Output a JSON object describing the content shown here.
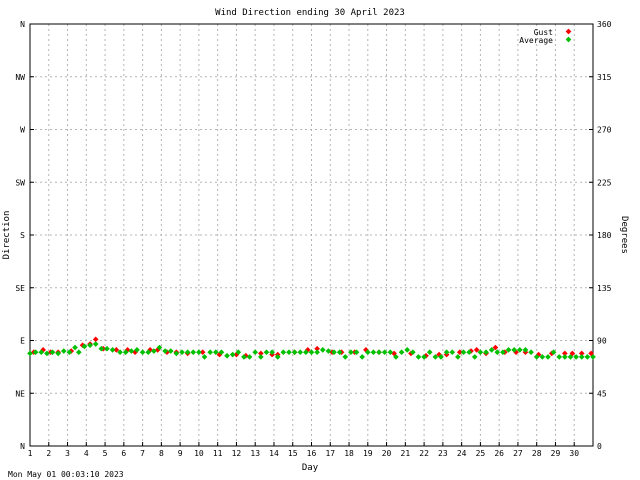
{
  "chart_data": {
    "type": "scatter",
    "title": "Wind Direction ending 30 April 2023",
    "xlabel": "Day",
    "ylabel_left": "Direction",
    "ylabel_right": "Degrees",
    "x_ticks": [
      "1",
      "2",
      "3",
      "4",
      "5",
      "6",
      "7",
      "8",
      "9",
      "10",
      "11",
      "12",
      "13",
      "14",
      "15",
      "16",
      "17",
      "18",
      "19",
      "20",
      "21",
      "22",
      "23",
      "24",
      "25",
      "26",
      "27",
      "28",
      "29",
      "30"
    ],
    "xlim": [
      1,
      31
    ],
    "ylim": [
      0,
      360
    ],
    "y_ticks_left": [
      {
        "value": 0,
        "label": "N"
      },
      {
        "value": 45,
        "label": "NE"
      },
      {
        "value": 90,
        "label": "E"
      },
      {
        "value": 135,
        "label": "SE"
      },
      {
        "value": 180,
        "label": "S"
      },
      {
        "value": 225,
        "label": "SW"
      },
      {
        "value": 270,
        "label": "W"
      },
      {
        "value": 315,
        "label": "NW"
      },
      {
        "value": 360,
        "label": "N"
      }
    ],
    "y_ticks_right": [
      {
        "value": 0,
        "label": "0"
      },
      {
        "value": 45,
        "label": "45"
      },
      {
        "value": 90,
        "label": "90"
      },
      {
        "value": 135,
        "label": "135"
      },
      {
        "value": 180,
        "label": "180"
      },
      {
        "value": 225,
        "label": "225"
      },
      {
        "value": 270,
        "label": "270"
      },
      {
        "value": 315,
        "label": "315"
      },
      {
        "value": 360,
        "label": "360"
      }
    ],
    "grid": true,
    "legend_position": "top-right",
    "series": [
      {
        "name": "Gust",
        "color": "#ff0000",
        "points": [
          [
            1.2,
            80
          ],
          [
            1.7,
            82
          ],
          [
            2.1,
            80
          ],
          [
            2.5,
            80
          ],
          [
            3.2,
            81
          ],
          [
            3.8,
            86
          ],
          [
            4.2,
            87
          ],
          [
            4.5,
            91
          ],
          [
            4.9,
            83
          ],
          [
            5.6,
            82
          ],
          [
            6.2,
            82
          ],
          [
            6.6,
            80
          ],
          [
            7.4,
            82
          ],
          [
            7.8,
            82
          ],
          [
            8.3,
            80
          ],
          [
            8.8,
            80
          ],
          [
            9.4,
            79
          ],
          [
            10.2,
            80
          ],
          [
            11.1,
            78
          ],
          [
            12.0,
            78
          ],
          [
            12.5,
            77
          ],
          [
            13.3,
            79
          ],
          [
            13.9,
            78
          ],
          [
            14.2,
            78
          ],
          [
            15.1,
            80
          ],
          [
            15.8,
            82
          ],
          [
            16.3,
            83
          ],
          [
            17.1,
            80
          ],
          [
            17.6,
            80
          ],
          [
            18.3,
            80
          ],
          [
            18.9,
            82
          ],
          [
            19.6,
            80
          ],
          [
            20.4,
            79
          ],
          [
            21.3,
            79
          ],
          [
            22.1,
            77
          ],
          [
            22.8,
            78
          ],
          [
            23.2,
            78
          ],
          [
            23.9,
            80
          ],
          [
            24.5,
            81
          ],
          [
            24.8,
            82
          ],
          [
            25.3,
            79
          ],
          [
            25.8,
            84
          ],
          [
            26.3,
            80
          ],
          [
            26.9,
            80
          ],
          [
            27.4,
            80
          ],
          [
            28.1,
            78
          ],
          [
            28.8,
            79
          ],
          [
            29.5,
            79
          ],
          [
            29.9,
            79
          ],
          [
            30.4,
            79
          ],
          [
            30.9,
            79
          ]
        ]
      },
      {
        "name": "Average",
        "color": "#00c000",
        "points": [
          [
            1.0,
            79
          ],
          [
            1.3,
            80
          ],
          [
            1.6,
            80
          ],
          [
            1.9,
            79
          ],
          [
            2.2,
            80
          ],
          [
            2.5,
            79
          ],
          [
            2.8,
            81
          ],
          [
            3.1,
            80
          ],
          [
            3.4,
            84
          ],
          [
            3.6,
            80
          ],
          [
            3.9,
            85
          ],
          [
            4.2,
            86
          ],
          [
            4.5,
            87
          ],
          [
            4.8,
            83
          ],
          [
            5.1,
            83
          ],
          [
            5.4,
            82
          ],
          [
            5.8,
            80
          ],
          [
            6.1,
            80
          ],
          [
            6.4,
            81
          ],
          [
            6.7,
            82
          ],
          [
            7.0,
            80
          ],
          [
            7.3,
            80
          ],
          [
            7.6,
            81
          ],
          [
            7.9,
            84
          ],
          [
            8.2,
            81
          ],
          [
            8.5,
            81
          ],
          [
            8.8,
            79
          ],
          [
            9.1,
            80
          ],
          [
            9.4,
            80
          ],
          [
            9.7,
            80
          ],
          [
            10.0,
            80
          ],
          [
            10.3,
            76
          ],
          [
            10.6,
            80
          ],
          [
            10.9,
            80
          ],
          [
            11.2,
            80
          ],
          [
            11.5,
            77
          ],
          [
            11.8,
            78
          ],
          [
            12.1,
            80
          ],
          [
            12.4,
            76
          ],
          [
            12.7,
            76
          ],
          [
            13.0,
            80
          ],
          [
            13.3,
            76
          ],
          [
            13.6,
            80
          ],
          [
            13.9,
            80
          ],
          [
            14.2,
            76
          ],
          [
            14.5,
            80
          ],
          [
            14.8,
            80
          ],
          [
            15.1,
            80
          ],
          [
            15.4,
            80
          ],
          [
            15.7,
            80
          ],
          [
            16.0,
            80
          ],
          [
            16.3,
            80
          ],
          [
            16.6,
            82
          ],
          [
            16.9,
            81
          ],
          [
            17.2,
            80
          ],
          [
            17.5,
            80
          ],
          [
            17.8,
            76
          ],
          [
            18.1,
            80
          ],
          [
            18.4,
            80
          ],
          [
            18.7,
            76
          ],
          [
            19.0,
            80
          ],
          [
            19.3,
            80
          ],
          [
            19.6,
            80
          ],
          [
            19.9,
            80
          ],
          [
            20.2,
            80
          ],
          [
            20.5,
            76
          ],
          [
            20.8,
            80
          ],
          [
            21.1,
            82
          ],
          [
            21.4,
            80
          ],
          [
            21.7,
            76
          ],
          [
            22.0,
            76
          ],
          [
            22.3,
            80
          ],
          [
            22.6,
            76
          ],
          [
            22.9,
            76
          ],
          [
            23.2,
            80
          ],
          [
            23.5,
            80
          ],
          [
            23.8,
            76
          ],
          [
            24.1,
            80
          ],
          [
            24.4,
            80
          ],
          [
            24.7,
            76
          ],
          [
            25.0,
            80
          ],
          [
            25.3,
            80
          ],
          [
            25.6,
            82
          ],
          [
            25.9,
            80
          ],
          [
            26.2,
            80
          ],
          [
            26.5,
            82
          ],
          [
            26.8,
            82
          ],
          [
            27.1,
            82
          ],
          [
            27.4,
            82
          ],
          [
            27.7,
            80
          ],
          [
            28.0,
            76
          ],
          [
            28.3,
            76
          ],
          [
            28.6,
            76
          ],
          [
            28.9,
            80
          ],
          [
            29.2,
            76
          ],
          [
            29.5,
            76
          ],
          [
            29.8,
            76
          ],
          [
            30.1,
            76
          ],
          [
            30.4,
            76
          ],
          [
            30.7,
            76
          ],
          [
            31.0,
            76
          ]
        ]
      }
    ]
  },
  "footer": {
    "timestamp": "Mon May 01 00:03:10 2023"
  }
}
